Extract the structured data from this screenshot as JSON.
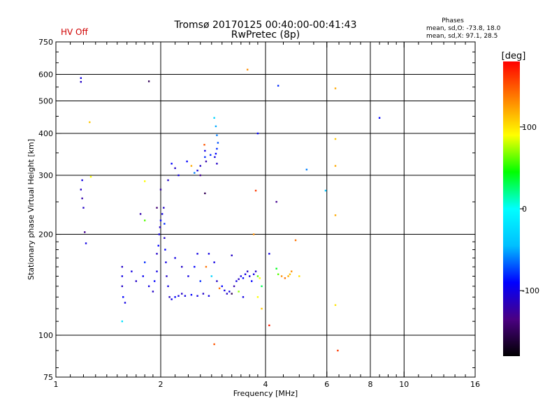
{
  "status": {
    "text": "HV Off",
    "color": "#d00000"
  },
  "phases": {
    "heading": "Phases",
    "line_o": "mean, sd,O: -73.8, 18.0",
    "line_x": "mean, sd,X:  97.1, 28.5"
  },
  "chart_data": {
    "type": "scatter",
    "title": "Tromsø 20170125 00:40:00-00:41:43",
    "subtitle": "RwPretec (8p)",
    "xlabel": "Frequency [MHz]",
    "ylabel": "Stationary phase Virtual Height [km]",
    "xscale": "log",
    "yscale": "log",
    "xlim": [
      1,
      16
    ],
    "ylim": [
      75,
      750
    ],
    "x_ticks": [
      1,
      2,
      4,
      6,
      8,
      10,
      16
    ],
    "x_tick_labels": [
      "1",
      "2",
      "4",
      "6",
      "8",
      "10",
      "16"
    ],
    "x_grid": [
      2,
      4,
      6,
      8,
      10
    ],
    "y_ticks": [
      75,
      100,
      200,
      300,
      400,
      500,
      600,
      750
    ],
    "y_tick_labels": [
      "75",
      "100",
      "200",
      "300",
      "400",
      "500",
      "600",
      "750"
    ],
    "y_grid": [
      100,
      200,
      300,
      400,
      500,
      600
    ],
    "grid": true,
    "colorbar": {
      "label": "[deg]",
      "range": [
        -180,
        180
      ],
      "ticks": [
        100,
        0,
        -100
      ],
      "tick_labels": [
        "100",
        "0",
        "-100"
      ],
      "colors": [
        "#000000",
        "#4b0082",
        "#0000ff",
        "#00bfff",
        "#00ffff",
        "#00ff00",
        "#ffff00",
        "#ff8000",
        "#ff0000"
      ]
    },
    "points": [
      [
        1.18,
        585,
        -100
      ],
      [
        1.18,
        570,
        -110
      ],
      [
        1.85,
        572,
        -150
      ],
      [
        3.55,
        620,
        130
      ],
      [
        4.35,
        555,
        -80
      ],
      [
        6.35,
        545,
        120
      ],
      [
        1.25,
        432,
        110
      ],
      [
        6.35,
        385,
        110
      ],
      [
        6.35,
        320,
        120
      ],
      [
        6.35,
        228,
        120
      ],
      [
        6.35,
        123,
        100
      ],
      [
        6.45,
        90,
        160
      ],
      [
        8.5,
        445,
        -90
      ],
      [
        3.8,
        400,
        -90
      ],
      [
        5.25,
        312,
        -60
      ],
      [
        5.95,
        270,
        -40
      ],
      [
        2.85,
        445,
        -30
      ],
      [
        2.88,
        420,
        -50
      ],
      [
        2.9,
        395,
        -60
      ],
      [
        2.92,
        375,
        -70
      ],
      [
        2.9,
        360,
        -80
      ],
      [
        2.88,
        348,
        -90
      ],
      [
        2.86,
        340,
        -100
      ],
      [
        2.9,
        325,
        -110
      ],
      [
        2.78,
        345,
        -80
      ],
      [
        2.67,
        370,
        150
      ],
      [
        2.68,
        355,
        -100
      ],
      [
        2.68,
        340,
        -80
      ],
      [
        2.7,
        330,
        -120
      ],
      [
        2.6,
        320,
        -110
      ],
      [
        2.55,
        310,
        -100
      ],
      [
        2.6,
        300,
        -130
      ],
      [
        2.5,
        305,
        -60
      ],
      [
        2.45,
        320,
        120
      ],
      [
        2.38,
        330,
        -90
      ],
      [
        2.2,
        315,
        -110
      ],
      [
        2.15,
        325,
        -90
      ],
      [
        2.25,
        300,
        -100
      ],
      [
        2.1,
        290,
        -110
      ],
      [
        2.0,
        272,
        -120
      ],
      [
        2.68,
        265,
        -150
      ],
      [
        3.75,
        270,
        160
      ],
      [
        4.3,
        250,
        -130
      ],
      [
        1.26,
        297,
        90
      ],
      [
        1.19,
        290,
        -100
      ],
      [
        1.18,
        272,
        -110
      ],
      [
        1.19,
        256,
        -120
      ],
      [
        1.2,
        240,
        -110
      ],
      [
        1.21,
        203,
        -130
      ],
      [
        1.22,
        188,
        -100
      ],
      [
        1.8,
        288,
        90
      ],
      [
        1.95,
        240,
        -140
      ],
      [
        1.75,
        230,
        -120
      ],
      [
        1.8,
        220,
        60
      ],
      [
        3.7,
        200,
        130
      ],
      [
        4.88,
        192,
        140
      ],
      [
        4.1,
        175,
        -100
      ],
      [
        3.2,
        173,
        -110
      ],
      [
        1.55,
        110,
        -20
      ],
      [
        1.55,
        160,
        -110
      ],
      [
        1.55,
        150,
        -100
      ],
      [
        1.55,
        140,
        -110
      ],
      [
        1.56,
        130,
        -90
      ],
      [
        1.58,
        125,
        -100
      ],
      [
        1.65,
        155,
        -100
      ],
      [
        1.7,
        145,
        -110
      ],
      [
        1.78,
        150,
        -95
      ],
      [
        1.8,
        165,
        -80
      ],
      [
        1.85,
        140,
        -100
      ],
      [
        1.9,
        135,
        -110
      ],
      [
        1.92,
        145,
        -90
      ],
      [
        1.95,
        155,
        -100
      ],
      [
        1.95,
        175,
        -110
      ],
      [
        1.97,
        185,
        -90
      ],
      [
        1.98,
        200,
        -100
      ],
      [
        1.99,
        210,
        -110
      ],
      [
        2.0,
        220,
        -90
      ],
      [
        2.02,
        230,
        -100
      ],
      [
        2.04,
        240,
        -110
      ],
      [
        2.05,
        215,
        -80
      ],
      [
        2.05,
        195,
        -110
      ],
      [
        2.06,
        180,
        -90
      ],
      [
        2.07,
        165,
        -100
      ],
      [
        2.08,
        150,
        -110
      ],
      [
        2.1,
        140,
        -100
      ],
      [
        2.12,
        130,
        -110
      ],
      [
        2.15,
        128,
        -100
      ],
      [
        2.2,
        130,
        -90
      ],
      [
        2.25,
        131,
        -100
      ],
      [
        2.3,
        133,
        -110
      ],
      [
        2.35,
        131,
        -100
      ],
      [
        2.45,
        132,
        -90
      ],
      [
        2.55,
        131,
        -100
      ],
      [
        2.65,
        133,
        -110
      ],
      [
        2.75,
        131,
        -100
      ],
      [
        2.2,
        170,
        -100
      ],
      [
        2.3,
        160,
        -110
      ],
      [
        2.4,
        150,
        -100
      ],
      [
        2.5,
        160,
        -90
      ],
      [
        2.55,
        175,
        -100
      ],
      [
        2.6,
        145,
        -80
      ],
      [
        2.7,
        160,
        140
      ],
      [
        2.75,
        175,
        -100
      ],
      [
        2.8,
        150,
        -30
      ],
      [
        2.85,
        165,
        -100
      ],
      [
        2.9,
        145,
        -110
      ],
      [
        2.95,
        138,
        140
      ],
      [
        3.0,
        140,
        -90
      ],
      [
        3.05,
        136,
        -100
      ],
      [
        3.1,
        133,
        -110
      ],
      [
        3.15,
        135,
        -100
      ],
      [
        3.2,
        133,
        -150
      ],
      [
        3.25,
        140,
        -120
      ],
      [
        3.3,
        145,
        -100
      ],
      [
        3.35,
        147,
        -110
      ],
      [
        3.4,
        150,
        -100
      ],
      [
        3.45,
        148,
        -90
      ],
      [
        3.5,
        152,
        -100
      ],
      [
        3.55,
        155,
        -110
      ],
      [
        3.6,
        150,
        -100
      ],
      [
        3.65,
        145,
        -90
      ],
      [
        3.7,
        152,
        -100
      ],
      [
        3.75,
        155,
        -110
      ],
      [
        3.8,
        150,
        60
      ],
      [
        3.85,
        148,
        90
      ],
      [
        3.9,
        140,
        30
      ],
      [
        3.8,
        130,
        90
      ],
      [
        3.9,
        120,
        110
      ],
      [
        3.35,
        135,
        70
      ],
      [
        3.45,
        130,
        -100
      ],
      [
        2.85,
        94,
        150
      ],
      [
        4.1,
        107,
        170
      ],
      [
        4.3,
        158,
        40
      ],
      [
        4.35,
        152,
        60
      ],
      [
        4.45,
        150,
        130
      ],
      [
        4.55,
        148,
        140
      ],
      [
        4.65,
        150,
        120
      ],
      [
        4.7,
        152,
        110
      ],
      [
        4.75,
        155,
        130
      ],
      [
        5.0,
        150,
        100
      ]
    ]
  }
}
